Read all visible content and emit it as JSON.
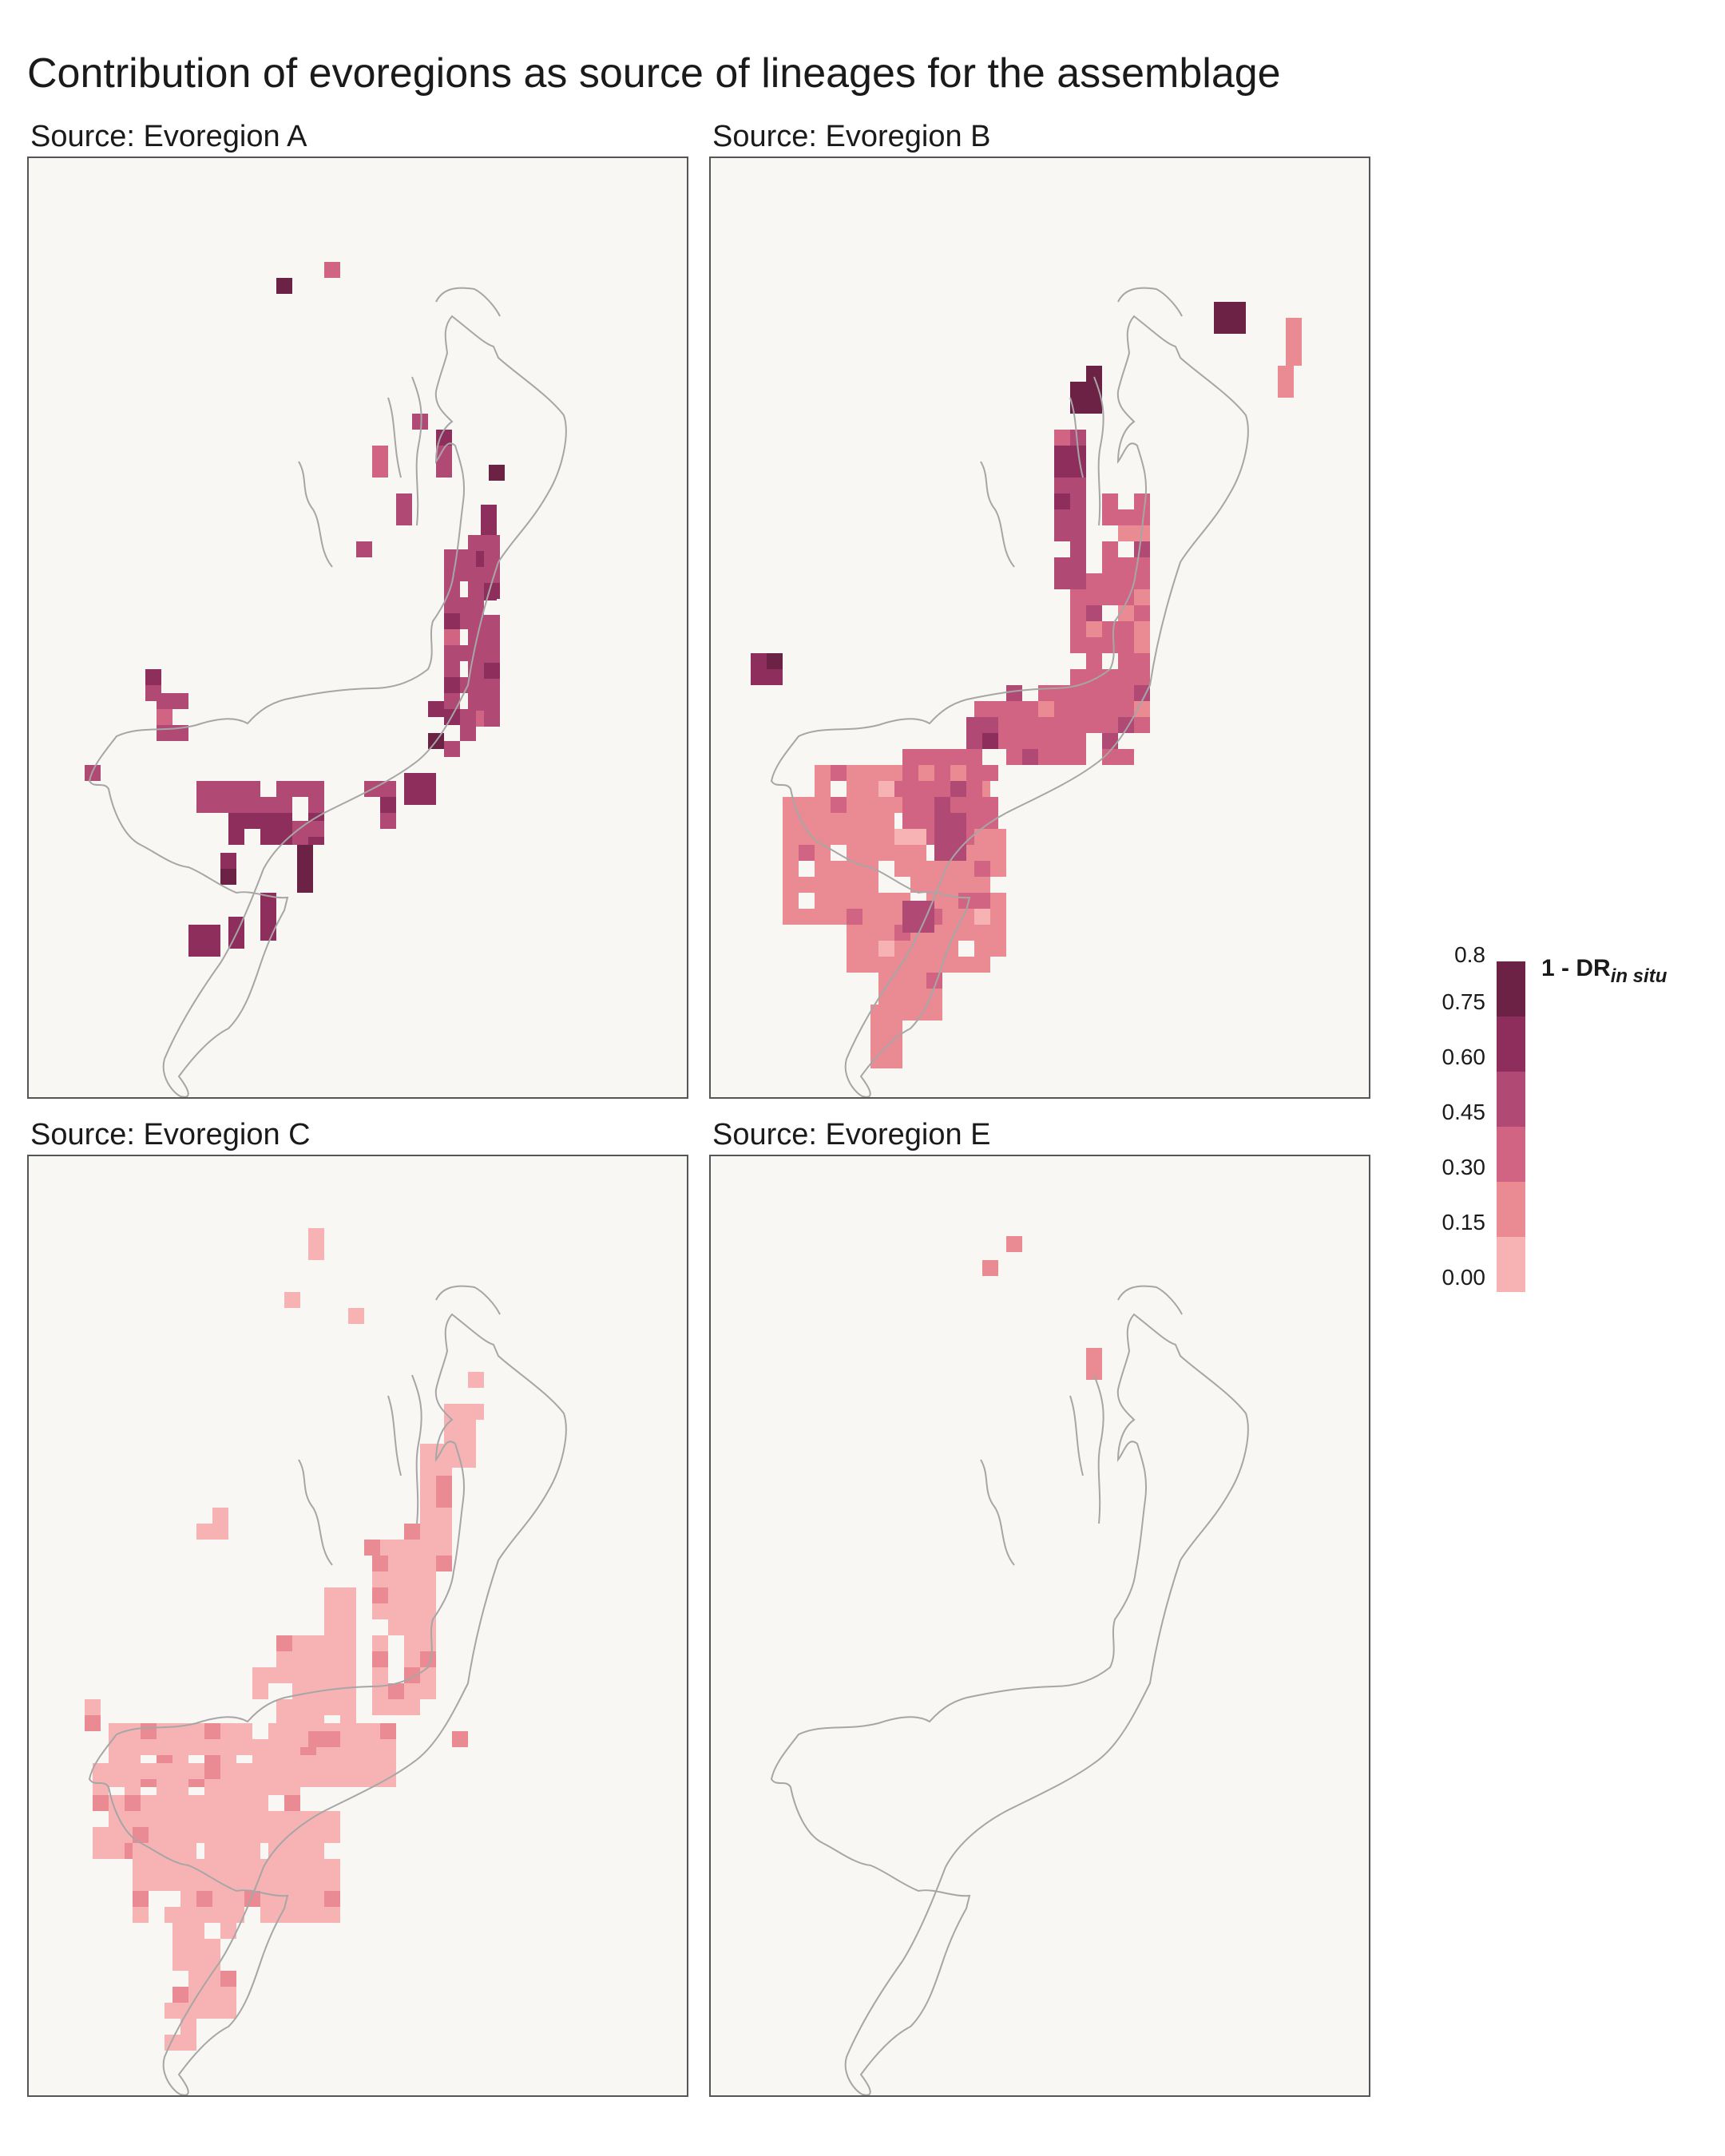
{
  "title": "Contribution of evoregions as source of lineages for the assemblage",
  "colors": {
    "panel_background": "#f8f7f4",
    "outline": "#a6a6a6",
    "scale": [
      "#f7b3b4",
      "#ea8b93",
      "#d06482",
      "#b04a74",
      "#8e2e5c",
      "#6b2244"
    ]
  },
  "legend": {
    "title_main": "1 - DR",
    "title_sub": "in situ",
    "ticks": [
      "0.00",
      "0.15",
      "0.30",
      "0.45",
      "0.60",
      "0.75",
      "0.8"
    ]
  },
  "panels": [
    {
      "label": "Source: Evoregion A"
    },
    {
      "label": "Source: Evoregion B"
    },
    {
      "label": "Source: Evoregion C"
    },
    {
      "label": "Source: Evoregion E"
    }
  ]
}
